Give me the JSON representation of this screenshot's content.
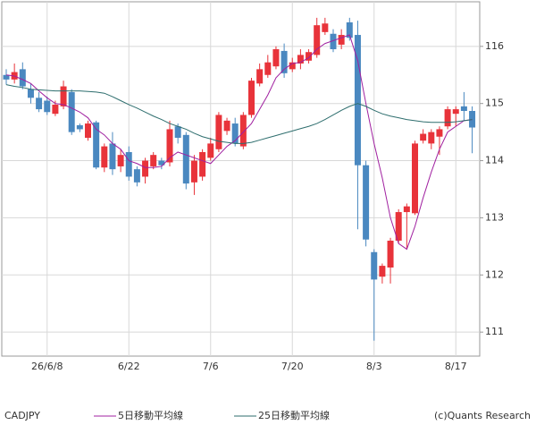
{
  "chart_data": {
    "type": "candlestick",
    "title": "CADJPY",
    "credit": "(c)Quants Research",
    "categories": [
      null,
      null,
      null,
      null,
      null,
      "26/6/8",
      null,
      null,
      null,
      null,
      null,
      null,
      null,
      null,
      null,
      "6/22",
      null,
      null,
      null,
      null,
      null,
      null,
      null,
      null,
      null,
      "7/6",
      null,
      null,
      null,
      null,
      null,
      null,
      null,
      null,
      null,
      "7/20",
      null,
      null,
      null,
      null,
      null,
      null,
      null,
      null,
      null,
      "8/3",
      null,
      null,
      null,
      null,
      null,
      null,
      null,
      null,
      null,
      "8/17",
      null,
      null
    ],
    "open": [
      115.5,
      115.42,
      115.6,
      115.25,
      115.1,
      115.05,
      114.82,
      114.95,
      115.2,
      114.62,
      114.4,
      114.67,
      113.88,
      114.3,
      113.9,
      114.15,
      113.85,
      113.72,
      113.9,
      114.0,
      113.97,
      114.6,
      114.45,
      113.62,
      113.72,
      114.05,
      114.2,
      114.52,
      114.65,
      114.25,
      114.8,
      115.35,
      115.5,
      115.65,
      115.92,
      115.6,
      115.7,
      115.75,
      115.85,
      116.25,
      116.22,
      116.03,
      116.42,
      116.2,
      113.92,
      112.4,
      111.97,
      112.13,
      112.6,
      113.1,
      113.08,
      114.35,
      114.3,
      114.42,
      114.6,
      114.82,
      114.95,
      114.87
    ],
    "high": [
      115.6,
      115.7,
      115.72,
      115.35,
      115.2,
      115.12,
      115.05,
      115.4,
      115.25,
      114.65,
      114.7,
      114.7,
      114.3,
      114.5,
      114.2,
      114.25,
      113.9,
      114.05,
      114.15,
      114.05,
      114.7,
      114.65,
      114.5,
      114.1,
      114.2,
      114.4,
      114.85,
      114.75,
      114.75,
      114.85,
      115.45,
      115.7,
      115.85,
      116.0,
      116.05,
      115.8,
      115.95,
      115.95,
      116.5,
      116.5,
      116.3,
      116.3,
      116.5,
      116.45,
      114.0,
      112.45,
      112.2,
      112.65,
      113.15,
      113.25,
      114.35,
      114.55,
      114.55,
      114.6,
      114.95,
      114.95,
      115.2,
      114.95
    ],
    "low": [
      115.33,
      115.35,
      115.25,
      115.0,
      114.85,
      114.8,
      114.78,
      114.9,
      114.45,
      114.5,
      114.35,
      113.85,
      113.8,
      113.75,
      113.8,
      113.65,
      113.55,
      113.6,
      113.85,
      113.85,
      113.9,
      114.3,
      113.5,
      113.4,
      113.65,
      114.0,
      114.15,
      114.45,
      114.25,
      114.2,
      114.75,
      115.3,
      115.45,
      115.6,
      115.45,
      115.55,
      115.6,
      115.7,
      115.8,
      116.2,
      115.9,
      115.95,
      116.1,
      112.8,
      112.5,
      110.85,
      111.85,
      111.85,
      112.55,
      112.45,
      113.05,
      114.3,
      114.2,
      114.1,
      114.55,
      114.6,
      114.7,
      114.13
    ],
    "close": [
      115.42,
      115.55,
      115.3,
      115.1,
      114.9,
      114.85,
      114.98,
      115.3,
      114.5,
      114.55,
      114.65,
      113.88,
      114.25,
      113.85,
      114.1,
      113.72,
      113.62,
      114.0,
      114.1,
      113.92,
      114.55,
      114.4,
      113.6,
      114.0,
      114.15,
      114.3,
      114.8,
      114.7,
      114.3,
      114.8,
      115.4,
      115.6,
      115.72,
      115.95,
      115.53,
      115.72,
      115.85,
      115.9,
      116.37,
      116.4,
      115.95,
      116.2,
      116.15,
      113.92,
      112.62,
      111.92,
      112.16,
      112.6,
      113.1,
      113.2,
      114.3,
      114.47,
      114.5,
      114.55,
      114.9,
      114.9,
      114.87,
      114.58
    ],
    "up_color": "#e8333a",
    "down_color": "#4a88c0",
    "lines": [
      {
        "name": "5日移動平均線",
        "color": "#a020a0",
        "values": [
          115.5,
          115.48,
          115.42,
          115.35,
          115.22,
          115.1,
          115.0,
          114.98,
          114.92,
          114.85,
          114.75,
          114.55,
          114.45,
          114.3,
          114.2,
          114.0,
          113.95,
          113.88,
          113.88,
          113.9,
          114.05,
          114.15,
          114.1,
          114.05,
          114.0,
          113.95,
          114.1,
          114.25,
          114.35,
          114.5,
          114.65,
          114.9,
          115.15,
          115.45,
          115.6,
          115.7,
          115.72,
          115.8,
          115.95,
          116.05,
          116.1,
          116.15,
          116.2,
          115.75,
          115.0,
          114.3,
          113.7,
          113.0,
          112.55,
          112.45,
          112.85,
          113.35,
          113.8,
          114.2,
          114.5,
          114.6,
          114.7,
          114.72
        ]
      },
      {
        "name": "25日移動平均線",
        "color": "#2e6e6e",
        "values": [
          115.33,
          115.3,
          115.28,
          115.25,
          115.24,
          115.23,
          115.22,
          115.22,
          115.22,
          115.22,
          115.21,
          115.2,
          115.18,
          115.12,
          115.05,
          114.98,
          114.92,
          114.85,
          114.78,
          114.72,
          114.65,
          114.6,
          114.55,
          114.48,
          114.42,
          114.38,
          114.34,
          114.32,
          114.3,
          114.3,
          114.32,
          114.36,
          114.4,
          114.44,
          114.48,
          114.52,
          114.56,
          114.6,
          114.65,
          114.72,
          114.8,
          114.88,
          114.95,
          115.0,
          114.95,
          114.88,
          114.82,
          114.78,
          114.75,
          114.72,
          114.7,
          114.68,
          114.67,
          114.67,
          114.67,
          114.68,
          114.7,
          114.72
        ]
      }
    ],
    "ylim": [
      110.58,
      116.78
    ],
    "yticks": [
      111,
      112,
      113,
      114,
      115,
      116
    ],
    "grid": true
  }
}
